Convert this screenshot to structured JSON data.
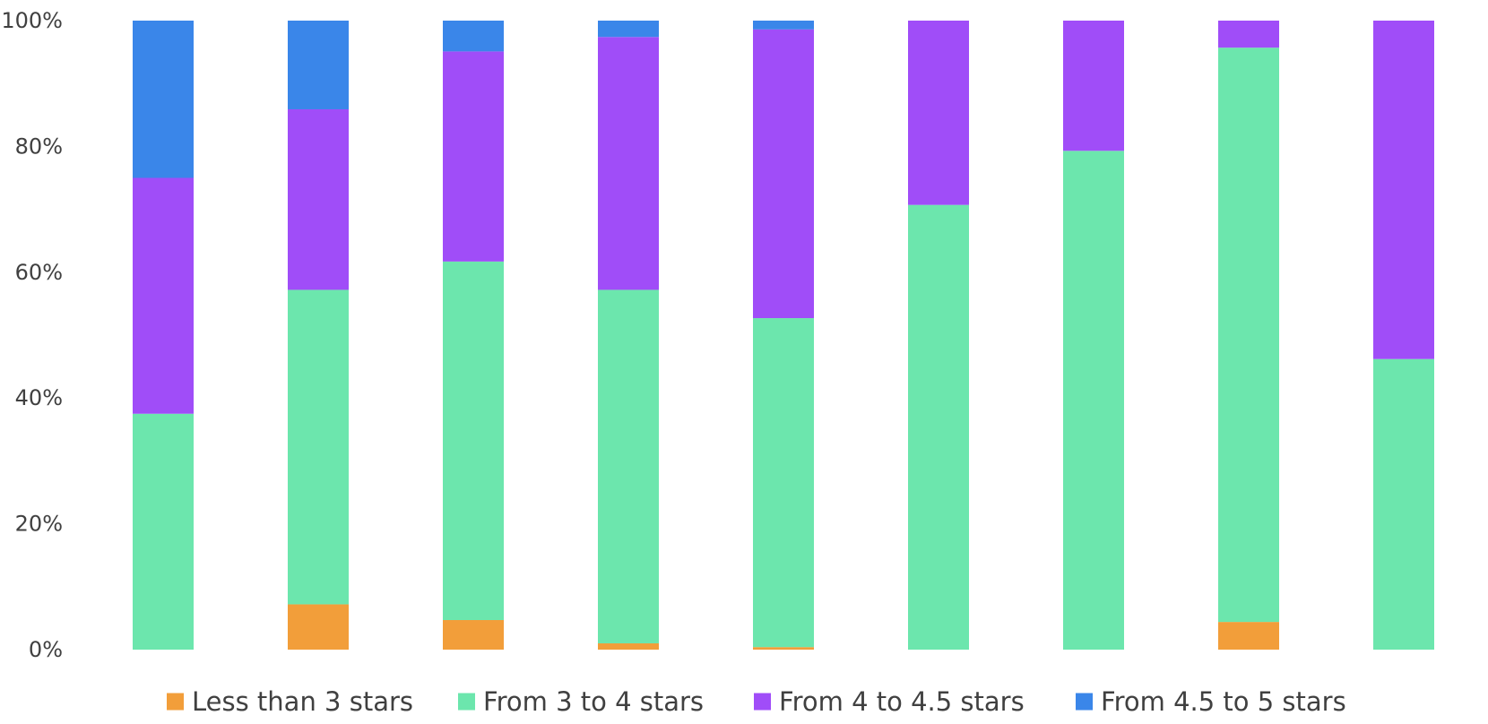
{
  "chart_data": {
    "type": "bar",
    "stacked": true,
    "percent": true,
    "title": "",
    "xlabel": "",
    "ylabel": "",
    "ylim": [
      0,
      100
    ],
    "y_ticks": [
      "0%",
      "20%",
      "40%",
      "60%",
      "80%",
      "100%"
    ],
    "categories": [
      "",
      "",
      "",
      "",
      "",
      "",
      "",
      "",
      ""
    ],
    "grid": false,
    "legend_position": "bottom",
    "series": [
      {
        "name": "Less than 3 stars",
        "color": "#F29E3A",
        "values": [
          0,
          7.2,
          4.7,
          1.0,
          0.4,
          0,
          0,
          4.4,
          0
        ]
      },
      {
        "name": "From 3 to 4 stars",
        "color": "#6CE6AD",
        "values": [
          37.5,
          50.0,
          57.0,
          56.2,
          52.3,
          70.7,
          79.3,
          91.3,
          46.2
        ]
      },
      {
        "name": "From 4 to 4.5 stars",
        "color": "#A04DF8",
        "values": [
          37.5,
          28.7,
          33.4,
          40.2,
          45.9,
          29.3,
          20.7,
          4.3,
          53.8
        ]
      },
      {
        "name": "From 4.5 to 5 stars",
        "color": "#3A86E9",
        "values": [
          25.0,
          14.1,
          4.9,
          2.6,
          1.4,
          0,
          0,
          0,
          0
        ]
      }
    ]
  }
}
